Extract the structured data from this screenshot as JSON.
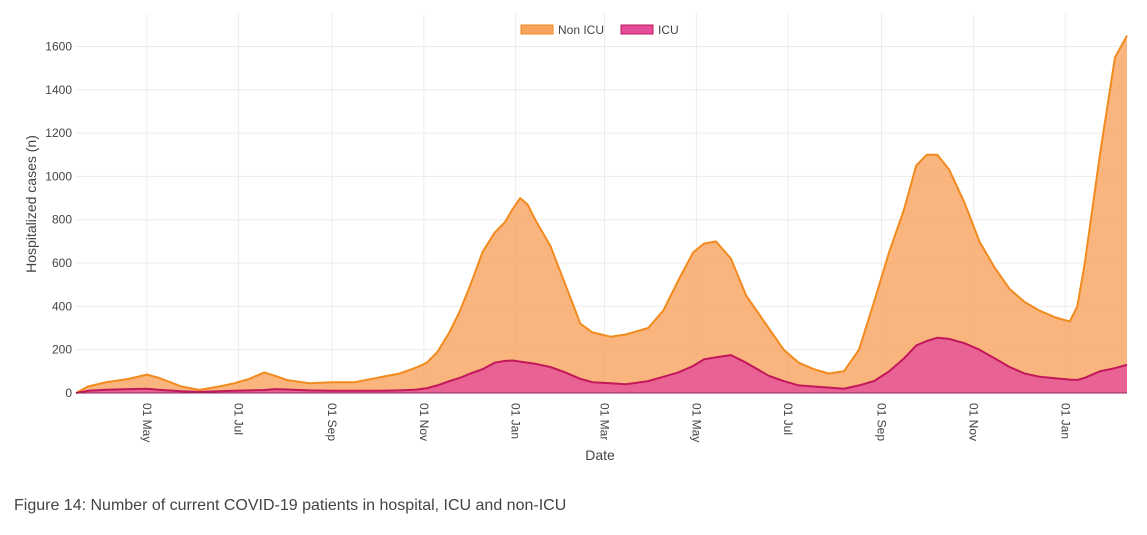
{
  "chart_data": {
    "type": "area",
    "caption": "Figure 14: Number of current COVID-19 patients in hospital, ICU and non-ICU",
    "xlabel": "Date",
    "ylabel": "Hospitalized cases (n)",
    "ylim": [
      0,
      1750
    ],
    "yticks": [
      0,
      200,
      400,
      600,
      800,
      1000,
      1200,
      1400,
      1600
    ],
    "xrange_day_index": [
      0,
      698
    ],
    "xticks": [
      {
        "label": "01 May",
        "day": 47
      },
      {
        "label": "01 Jul",
        "day": 108
      },
      {
        "label": "01 Sep",
        "day": 170
      },
      {
        "label": "01 Nov",
        "day": 231
      },
      {
        "label": "01 Jan",
        "day": 292
      },
      {
        "label": "01 Mar",
        "day": 351
      },
      {
        "label": "01 May",
        "day": 412
      },
      {
        "label": "01 Jul",
        "day": 473
      },
      {
        "label": "01 Sep",
        "day": 535
      },
      {
        "label": "01 Nov",
        "day": 596
      },
      {
        "label": "01 Jan",
        "day": 657
      }
    ],
    "legend": [
      {
        "name": "Non ICU",
        "color": "#f7a35c"
      },
      {
        "name": "ICU",
        "color": "#e54d9a"
      }
    ],
    "x_day_index": [
      0,
      8,
      20,
      35,
      47,
      55,
      70,
      82,
      95,
      105,
      115,
      125,
      132,
      140,
      155,
      170,
      185,
      200,
      215,
      225,
      233,
      240,
      248,
      255,
      262,
      270,
      278,
      285,
      290,
      295,
      300,
      305,
      315,
      325,
      335,
      343,
      355,
      365,
      380,
      390,
      400,
      410,
      417,
      425,
      435,
      445,
      460,
      470,
      480,
      490,
      500,
      510,
      520,
      530,
      540,
      550,
      558,
      565,
      572,
      580,
      590,
      600,
      610,
      620,
      630,
      640,
      650,
      660,
      665,
      670,
      680,
      690,
      698
    ],
    "series": [
      {
        "name": "ICU",
        "color": "#e54d9a",
        "line_color": "#c2185b",
        "values": [
          0,
          10,
          15,
          18,
          20,
          15,
          8,
          5,
          8,
          10,
          12,
          14,
          18,
          16,
          12,
          10,
          10,
          10,
          12,
          15,
          22,
          35,
          55,
          70,
          90,
          110,
          140,
          148,
          150,
          145,
          140,
          135,
          120,
          95,
          65,
          50,
          45,
          40,
          55,
          75,
          95,
          125,
          155,
          165,
          175,
          140,
          80,
          55,
          35,
          30,
          25,
          20,
          35,
          55,
          100,
          160,
          220,
          240,
          255,
          250,
          230,
          200,
          160,
          120,
          90,
          75,
          68,
          62,
          60,
          70,
          100,
          115,
          130
        ]
      },
      {
        "name": "Non ICU",
        "color": "#f7a35c",
        "line_color": "#f28a1e",
        "values": [
          0,
          30,
          50,
          65,
          85,
          70,
          30,
          15,
          30,
          45,
          65,
          95,
          80,
          60,
          45,
          50,
          50,
          70,
          90,
          115,
          140,
          190,
          280,
          380,
          500,
          650,
          740,
          790,
          850,
          900,
          870,
          800,
          680,
          500,
          320,
          280,
          260,
          270,
          300,
          380,
          520,
          650,
          690,
          700,
          620,
          450,
          300,
          200,
          140,
          110,
          90,
          100,
          200,
          420,
          650,
          850,
          1050,
          1100,
          1100,
          1030,
          880,
          700,
          580,
          480,
          420,
          380,
          350,
          330,
          400,
          600,
          1100,
          1550,
          1650
        ]
      }
    ]
  }
}
